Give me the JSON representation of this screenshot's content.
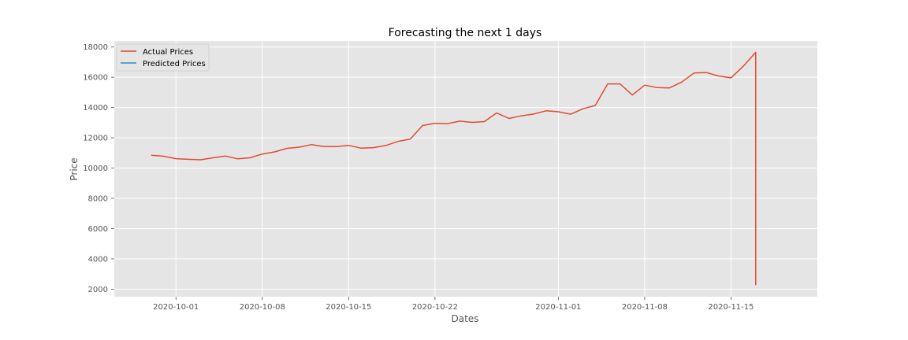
{
  "chart_data": {
    "type": "line",
    "title": "Forecasting the next 1 days",
    "xlabel": "Dates",
    "ylabel": "Price",
    "grid": true,
    "legend_position": "top-left",
    "xlim": [
      "2020-09-26",
      "2020-11-22"
    ],
    "ylim": [
      1500,
      18400
    ],
    "x_ticks": [
      "2020-10-01",
      "2020-10-08",
      "2020-10-15",
      "2020-10-22",
      "2020-11-01",
      "2020-11-08",
      "2020-11-15"
    ],
    "y_ticks": [
      2000,
      4000,
      6000,
      8000,
      10000,
      12000,
      14000,
      16000,
      18000
    ],
    "series": [
      {
        "name": "Actual Prices",
        "color": "#E24A33",
        "x": [
          "2020-09-29",
          "2020-09-30",
          "2020-10-01",
          "2020-10-02",
          "2020-10-03",
          "2020-10-04",
          "2020-10-05",
          "2020-10-06",
          "2020-10-07",
          "2020-10-08",
          "2020-10-09",
          "2020-10-10",
          "2020-10-11",
          "2020-10-12",
          "2020-10-13",
          "2020-10-14",
          "2020-10-15",
          "2020-10-16",
          "2020-10-17",
          "2020-10-18",
          "2020-10-19",
          "2020-10-20",
          "2020-10-21",
          "2020-10-22",
          "2020-10-23",
          "2020-10-24",
          "2020-10-25",
          "2020-10-26",
          "2020-10-27",
          "2020-10-28",
          "2020-10-29",
          "2020-10-30",
          "2020-10-31",
          "2020-11-01",
          "2020-11-02",
          "2020-11-03",
          "2020-11-04",
          "2020-11-05",
          "2020-11-06",
          "2020-11-07",
          "2020-11-08",
          "2020-11-09",
          "2020-11-10",
          "2020-11-11",
          "2020-11-12",
          "2020-11-13",
          "2020-11-14",
          "2020-11-15",
          "2020-11-16",
          "2020-11-17",
          "2020-11-17"
        ],
        "y": [
          10850,
          10780,
          10620,
          10580,
          10550,
          10680,
          10800,
          10610,
          10680,
          10930,
          11070,
          11300,
          11380,
          11550,
          11420,
          11420,
          11500,
          11320,
          11350,
          11490,
          11760,
          11920,
          12810,
          12960,
          12930,
          13100,
          13020,
          13070,
          13640,
          13280,
          13450,
          13570,
          13780,
          13720,
          13560,
          13920,
          14140,
          15560,
          15560,
          14830,
          15480,
          15320,
          15290,
          15680,
          16280,
          16310,
          16080,
          15960,
          16730,
          17650,
          2270
        ]
      },
      {
        "name": "Predicted Prices",
        "color": "#348ABD",
        "x": [],
        "y": []
      }
    ]
  }
}
